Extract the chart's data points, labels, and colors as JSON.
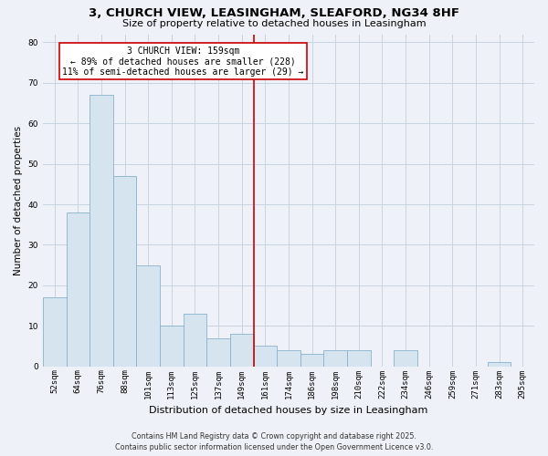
{
  "title": "3, CHURCH VIEW, LEASINGHAM, SLEAFORD, NG34 8HF",
  "subtitle": "Size of property relative to detached houses in Leasingham",
  "xlabel": "Distribution of detached houses by size in Leasingham",
  "ylabel": "Number of detached properties",
  "bar_labels": [
    "52sqm",
    "64sqm",
    "76sqm",
    "88sqm",
    "101sqm",
    "113sqm",
    "125sqm",
    "137sqm",
    "149sqm",
    "161sqm",
    "174sqm",
    "186sqm",
    "198sqm",
    "210sqm",
    "222sqm",
    "234sqm",
    "246sqm",
    "259sqm",
    "271sqm",
    "283sqm",
    "295sqm"
  ],
  "bar_values": [
    17,
    38,
    67,
    47,
    25,
    10,
    13,
    7,
    8,
    5,
    4,
    3,
    4,
    4,
    0,
    4,
    0,
    0,
    0,
    1,
    0
  ],
  "bar_color": "#d6e4f0",
  "bar_edge_color": "#8ab0cc",
  "vline_x_idx": 9,
  "vline_color": "#cc0000",
  "annotation_title": "3 CHURCH VIEW: 159sqm",
  "annotation_line1": "← 89% of detached houses are smaller (228)",
  "annotation_line2": "11% of semi-detached houses are larger (29) →",
  "annotation_box_color": "white",
  "annotation_box_edge": "#cc0000",
  "ylim": [
    0,
    82
  ],
  "yticks": [
    0,
    10,
    20,
    30,
    40,
    50,
    60,
    70,
    80
  ],
  "grid_color": "#c8d4e0",
  "plot_bg_color": "#eef2f8",
  "fig_bg_color": "#eef2f8",
  "footer_line1": "Contains HM Land Registry data © Crown copyright and database right 2025.",
  "footer_line2": "Contains public sector information licensed under the Open Government Licence v3.0.",
  "title_fontsize": 9.5,
  "subtitle_fontsize": 8,
  "tick_fontsize": 6.5,
  "ylabel_fontsize": 7.5,
  "xlabel_fontsize": 8,
  "footer_fontsize": 5.8,
  "annot_fontsize": 7
}
